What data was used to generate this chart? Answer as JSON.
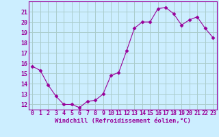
{
  "x": [
    0,
    1,
    2,
    3,
    4,
    5,
    6,
    7,
    8,
    9,
    10,
    11,
    12,
    13,
    14,
    15,
    16,
    17,
    18,
    19,
    20,
    21,
    22,
    23
  ],
  "y": [
    15.7,
    15.3,
    13.9,
    12.8,
    12.0,
    12.0,
    11.7,
    12.3,
    12.4,
    13.0,
    14.8,
    15.1,
    17.2,
    19.4,
    20.0,
    20.0,
    21.3,
    21.4,
    20.8,
    19.7,
    20.2,
    20.5,
    19.4,
    18.5
  ],
  "line_color": "#990099",
  "marker": "D",
  "marker_size": 2.5,
  "bg_color": "#cceeff",
  "grid_color": "#aacccc",
  "xlabel": "Windchill (Refroidissement éolien,°C)",
  "ylim": [
    11.5,
    22.0
  ],
  "xlim": [
    -0.5,
    23.5
  ],
  "yticks": [
    12,
    13,
    14,
    15,
    16,
    17,
    18,
    19,
    20,
    21
  ],
  "xticks": [
    0,
    1,
    2,
    3,
    4,
    5,
    6,
    7,
    8,
    9,
    10,
    11,
    12,
    13,
    14,
    15,
    16,
    17,
    18,
    19,
    20,
    21,
    22,
    23
  ],
  "tick_color": "#990099",
  "label_color": "#990099",
  "spine_color": "#990099",
  "font_size_axis": 6.5,
  "font_size_tick": 6.0
}
